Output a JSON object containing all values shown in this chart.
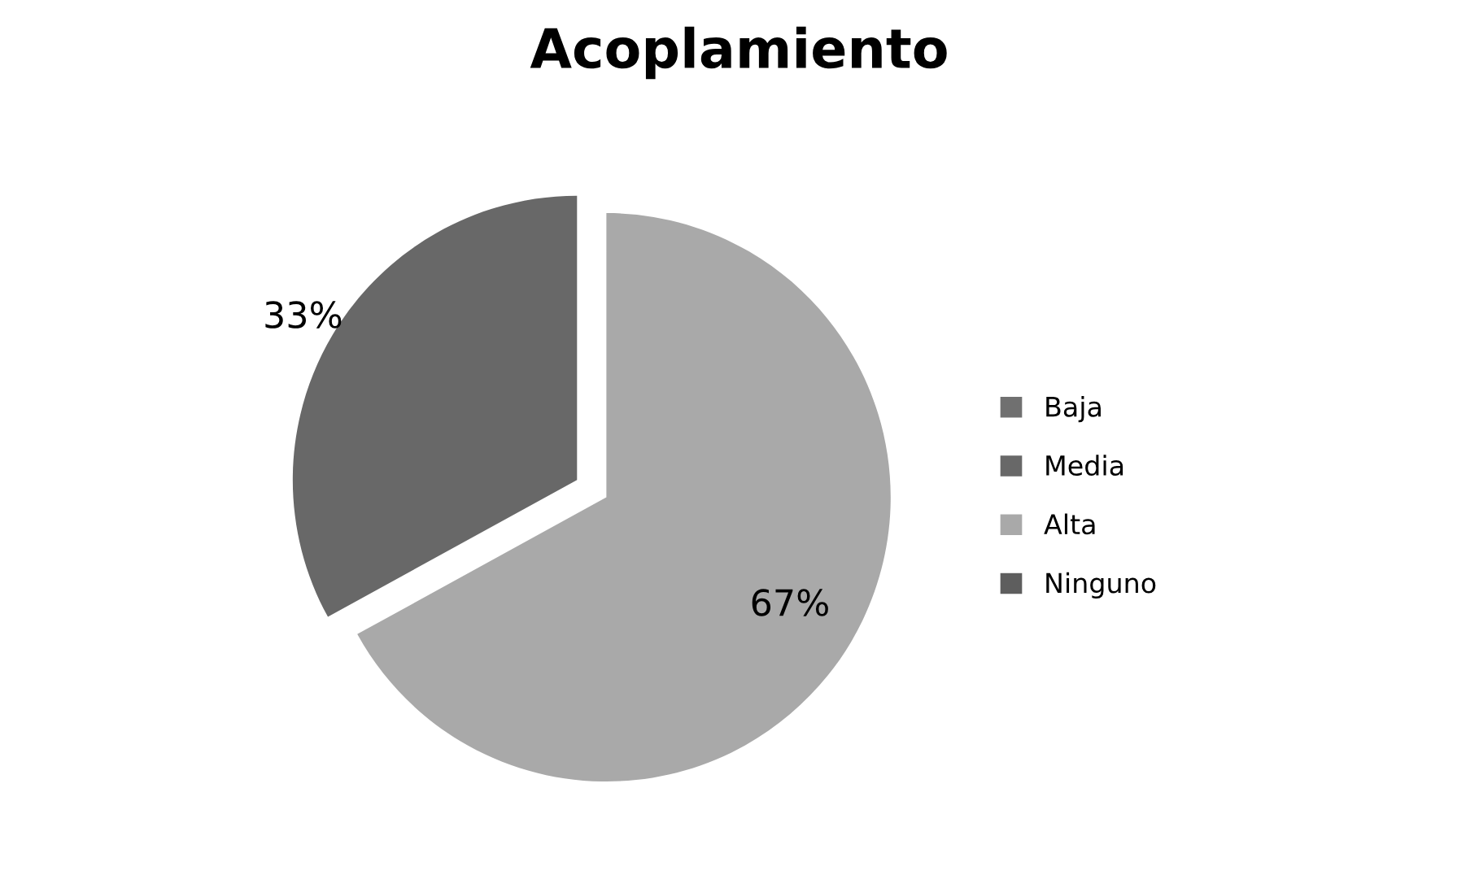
{
  "chart_data": {
    "type": "pie",
    "title": "Acoplamiento",
    "categories": [
      "Baja",
      "Media",
      "Alta",
      "Ninguno"
    ],
    "values": [
      0,
      33,
      67,
      0
    ],
    "colors": [
      "#707070",
      "#686868",
      "#a9a9a9",
      "#5e5e5e"
    ],
    "value_labels": [
      null,
      "33%",
      "67%",
      null
    ],
    "legend": "right"
  }
}
